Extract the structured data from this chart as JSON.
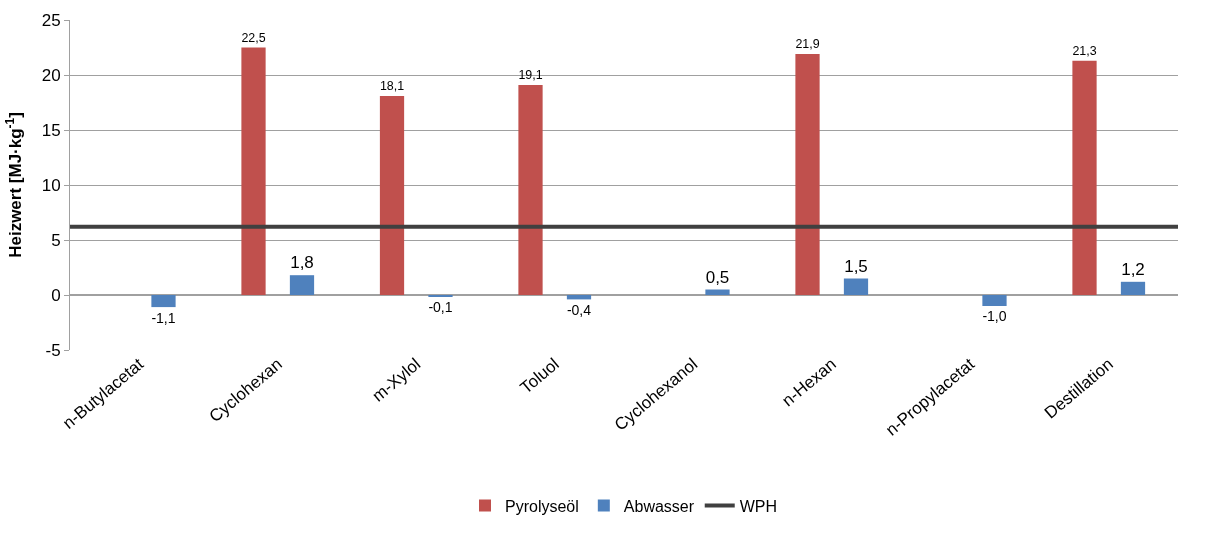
{
  "chart_data": {
    "type": "bar",
    "ylabel": "Heizwert [MJ·kg$^{-1}$]",
    "categories": [
      "n-Butylacetat",
      "Cyclohexan",
      "m-Xylol",
      "Toluol",
      "Cyclohexanol",
      "n-Hexan",
      "n-Propylacetat",
      "Destillation"
    ],
    "series": [
      {
        "name": "Pyrolyseöl",
        "color": "#c0504d",
        "values": [
          null,
          22.5,
          18.1,
          19.1,
          null,
          21.9,
          null,
          21.3
        ],
        "value_labels": [
          null,
          "22,5",
          "18,1",
          "19,1",
          null,
          "21,9",
          null,
          "21,3"
        ]
      },
      {
        "name": "Abwasser",
        "color": "#4f81bd",
        "values": [
          -1.1,
          1.8,
          -0.1,
          -0.4,
          0.5,
          1.5,
          -1.0,
          1.2
        ],
        "value_labels": [
          "-1,1",
          "1,8",
          "-0,1",
          "-0,4",
          "0,5",
          "1,5",
          "-1,0",
          "1,2"
        ]
      }
    ],
    "ref_lines": [
      {
        "axis": "y",
        "value": 6.2,
        "label": "WPH",
        "color": "#404040",
        "line_style": "solid"
      }
    ],
    "ylim": [
      -5,
      25
    ],
    "yticks": [
      -5,
      0,
      5,
      10,
      15,
      20,
      25
    ],
    "grid": "y",
    "legend": "bottom"
  }
}
